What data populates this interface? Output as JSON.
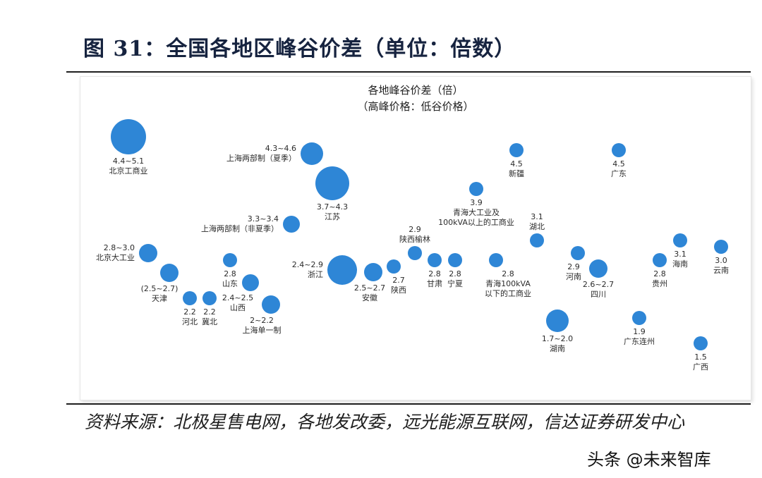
{
  "figure_title": "图 31：全国各地区峰谷价差（单位：倍数）",
  "source": "资料来源：北极星售电网，各地发改委，远光能源互联网，信达证券研发中心",
  "watermark": "头条 @未来智库",
  "chart_data": {
    "type": "scatter",
    "title": "各地峰谷价差（倍）",
    "subtitle": "（高峰价格：低谷价格）",
    "bubble_color": "#2e86d6",
    "label_color": "#2b2b2b",
    "points": [
      {
        "region": "北京工商业",
        "range": "4.4~5.1"
      },
      {
        "region": "上海两部制（夏季）",
        "range": "4.3~4.6"
      },
      {
        "region": "江苏",
        "range": "3.7~4.3"
      },
      {
        "region": "上海两部制（非夏季）",
        "range": "3.3~3.4"
      },
      {
        "region": "北京大工业",
        "range": "2.8~3.0"
      },
      {
        "region": "天津",
        "range": "(2.5~2.7)"
      },
      {
        "region": "河北",
        "range": "2.2"
      },
      {
        "region": "冀北",
        "range": "2.2"
      },
      {
        "region": "山东",
        "range": "2.8"
      },
      {
        "region": "山西",
        "range": "2.4~2.5"
      },
      {
        "region": "上海单一制",
        "range": "2~2.2"
      },
      {
        "region": "浙江",
        "range": "2.4~2.9"
      },
      {
        "region": "安徽",
        "range": "2.5~2.7"
      },
      {
        "region": "陕西",
        "range": "2.7"
      },
      {
        "region": "陕西榆林",
        "range": "2.9"
      },
      {
        "region": "甘肃",
        "range": "2.8"
      },
      {
        "region": "宁夏",
        "range": "2.8"
      },
      {
        "region": "青海大工业及100kVA以上的工商业",
        "range": "3.9"
      },
      {
        "region": "青海100kVA以下的工商业",
        "range": "2.8"
      },
      {
        "region": "新疆",
        "range": "4.5"
      },
      {
        "region": "湖北",
        "range": "3.1"
      },
      {
        "region": "湖南",
        "range": "1.7~2.0"
      },
      {
        "region": "河南",
        "range": "2.9"
      },
      {
        "region": "四川",
        "range": "2.6~2.7"
      },
      {
        "region": "广东",
        "range": "4.5"
      },
      {
        "region": "广东连州",
        "range": "1.9"
      },
      {
        "region": "贵州",
        "range": "2.8"
      },
      {
        "region": "海南",
        "range": "3.1"
      },
      {
        "region": "云南",
        "range": "3.0"
      },
      {
        "region": "广西",
        "range": "1.5"
      }
    ]
  }
}
